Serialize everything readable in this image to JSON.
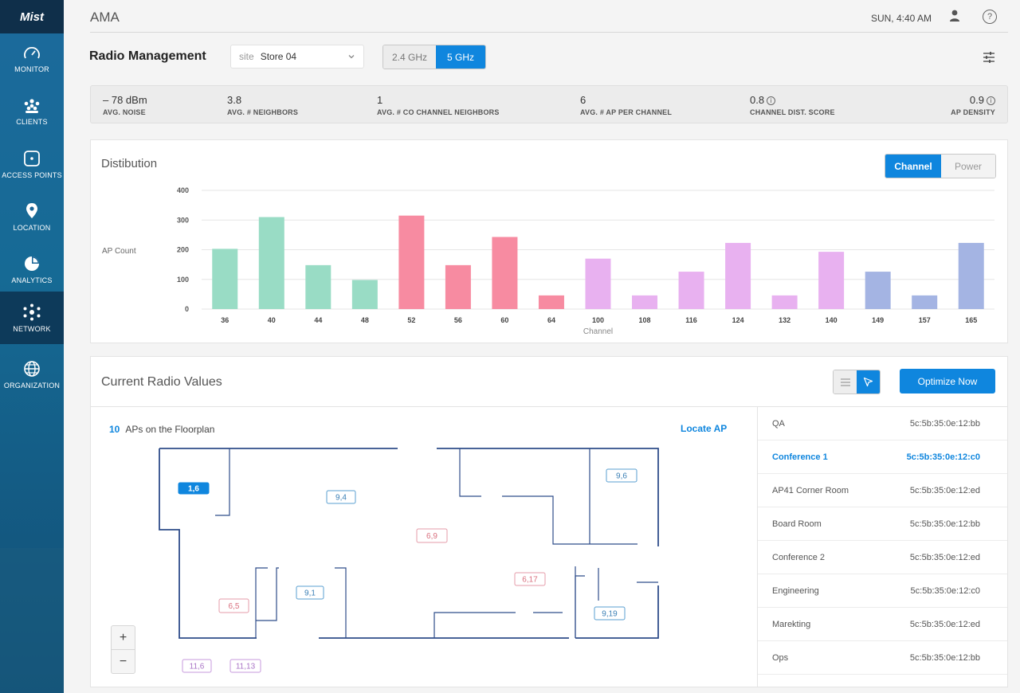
{
  "brand": "Mist",
  "sidebar": {
    "items": [
      {
        "label": "MONITOR",
        "icon": "gauge-icon"
      },
      {
        "label": "CLIENTS",
        "icon": "clients-icon"
      },
      {
        "label": "ACCESS POINTS",
        "icon": "access-point-icon"
      },
      {
        "label": "LOCATION",
        "icon": "location-pin-icon"
      },
      {
        "label": "ANALYTICS",
        "icon": "pie-chart-icon"
      },
      {
        "label": "NETWORK",
        "icon": "network-icon",
        "active": true
      },
      {
        "label": "ORGANIZATION",
        "icon": "globe-icon"
      }
    ]
  },
  "header": {
    "title": "AMA",
    "clock": "SUN, 4:40 AM",
    "help_glyph": "?"
  },
  "page": {
    "title": "Radio Management",
    "site_prefix": "site",
    "site_value": "Store 04",
    "bands": [
      "2.4 GHz",
      "5 GHz"
    ],
    "active_band": "5 GHz"
  },
  "stats": [
    {
      "value": "– 78 dBm",
      "label": "AVG. NOISE"
    },
    {
      "value": "3.8",
      "label": "AVG. # NEIGHBORS"
    },
    {
      "value": "1",
      "label": "AVG. # CO CHANNEL NEIGHBORS"
    },
    {
      "value": "6",
      "label": "AVG. # AP PER CHANNEL"
    },
    {
      "value": "0.8",
      "label": "CHANNEL DIST. SCORE",
      "info": true
    },
    {
      "value": "0.9",
      "label": "AP DENSITY",
      "info": true
    }
  ],
  "distribution": {
    "title": "Distibution",
    "toggle": [
      "Channel",
      "Power"
    ],
    "active_toggle": "Channel"
  },
  "colors": {
    "accent": "#0f86de",
    "green": "#99dcc5",
    "red": "#f78ba1",
    "violet": "#e8b1f0",
    "blue": "#a4b4e3"
  },
  "chart_data": {
    "type": "bar",
    "xlabel": "Channel",
    "ylabel": "AP Count",
    "ylim": [
      0,
      400
    ],
    "yticks": [
      0,
      100,
      200,
      300,
      400
    ],
    "categories": [
      "36",
      "40",
      "44",
      "48",
      "52",
      "56",
      "60",
      "64",
      "100",
      "108",
      "116",
      "124",
      "132",
      "140",
      "149",
      "157",
      "165"
    ],
    "values": [
      203,
      310,
      148,
      98,
      315,
      148,
      243,
      46,
      170,
      46,
      126,
      223,
      46,
      193,
      126,
      46,
      223
    ],
    "bar_colors": [
      "#99dcc5",
      "#99dcc5",
      "#99dcc5",
      "#99dcc5",
      "#f78ba1",
      "#f78ba1",
      "#f78ba1",
      "#f78ba1",
      "#e8b1f0",
      "#e8b1f0",
      "#e8b1f0",
      "#e8b1f0",
      "#e8b1f0",
      "#e8b1f0",
      "#a4b4e3",
      "#a4b4e3",
      "#a4b4e3"
    ],
    "grid": true
  },
  "radio": {
    "title": "Current Radio Values",
    "optimize_label": "Optimize Now",
    "ap_count": "10",
    "ap_count_label": "APs on the Floorplan",
    "locate_label": "Locate AP",
    "zoom_in": "+",
    "zoom_out": "−",
    "floor_aps": [
      {
        "label": "1,6",
        "kind": "selected"
      },
      {
        "label": "9,4",
        "kind": "blue"
      },
      {
        "label": "6,9",
        "kind": "red"
      },
      {
        "label": "9,6",
        "kind": "blue"
      },
      {
        "label": "6,17",
        "kind": "red"
      },
      {
        "label": "9,1",
        "kind": "blue"
      },
      {
        "label": "6,5",
        "kind": "red"
      },
      {
        "label": "9,19",
        "kind": "blue"
      },
      {
        "label": "11,6",
        "kind": "violet"
      },
      {
        "label": "11,13",
        "kind": "violet"
      }
    ],
    "ap_list": [
      {
        "name": "QA",
        "mac": "5c:5b:35:0e:12:bb"
      },
      {
        "name": "Conference 1",
        "mac": "5c:5b:35:0e:12:c0",
        "selected": true
      },
      {
        "name": "AP41 Corner Room",
        "mac": "5c:5b:35:0e:12:ed"
      },
      {
        "name": "Board Room",
        "mac": "5c:5b:35:0e:12:bb"
      },
      {
        "name": "Conference 2",
        "mac": "5c:5b:35:0e:12:ed"
      },
      {
        "name": "Engineering",
        "mac": "5c:5b:35:0e:12:c0"
      },
      {
        "name": "Marekting",
        "mac": "5c:5b:35:0e:12:ed"
      },
      {
        "name": "Ops",
        "mac": "5c:5b:35:0e:12:bb"
      }
    ]
  }
}
